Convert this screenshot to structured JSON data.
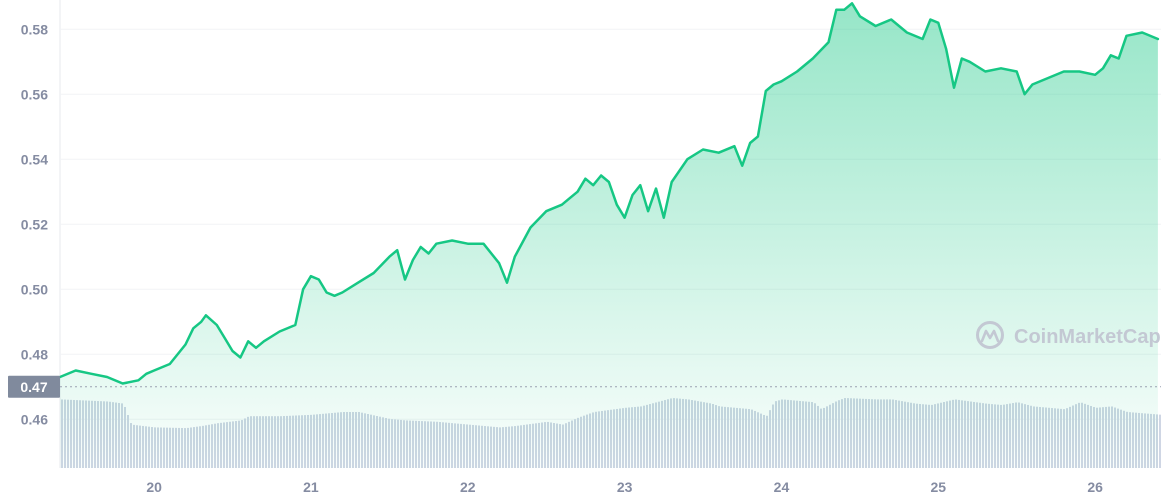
{
  "watermark": {
    "text": "CoinMarketCap",
    "icon": "coinmarketcap-logo-icon"
  },
  "colors": {
    "line": "#16c784",
    "volume": "#cfd6e4",
    "grid": "#f2f3f6",
    "reference_tag": "#808a9d",
    "axis_text": "#858ca2"
  },
  "chart_data": {
    "type": "area",
    "title": "",
    "xlabel": "",
    "ylabel": "",
    "ylim": [
      0.445,
      0.589
    ],
    "xlim": [
      19.4,
      26.42
    ],
    "y_ticks": [
      "0.46",
      "0.48",
      "0.50",
      "0.52",
      "0.54",
      "0.56",
      "0.58"
    ],
    "x_ticks": [
      "20",
      "21",
      "22",
      "23",
      "24",
      "25",
      "26"
    ],
    "reference_line": {
      "value": 0.47,
      "label": "0.47"
    },
    "grid": true,
    "legend": "none",
    "series": [
      {
        "x": [
          19.4,
          19.5,
          19.6,
          19.7,
          19.8,
          19.9,
          19.95,
          20.0,
          20.1,
          20.2,
          20.25,
          20.3,
          20.33,
          20.4,
          20.45,
          20.5,
          20.55,
          20.6,
          20.65,
          20.7,
          20.8,
          20.9,
          20.95,
          21.0,
          21.05,
          21.1,
          21.15,
          21.2,
          21.3,
          21.4,
          21.5,
          21.55,
          21.6,
          21.65,
          21.7,
          21.75,
          21.8,
          21.9,
          22.0,
          22.1,
          22.2,
          22.25,
          22.3,
          22.4,
          22.5,
          22.6,
          22.65,
          22.7,
          22.75,
          22.8,
          22.85,
          22.9,
          22.95,
          23.0,
          23.05,
          23.1,
          23.15,
          23.2,
          23.25,
          23.3,
          23.4,
          23.5,
          23.6,
          23.7,
          23.75,
          23.8,
          23.85,
          23.9,
          23.95,
          24.0,
          24.1,
          24.2,
          24.3,
          24.35,
          24.4,
          24.45,
          24.5,
          24.6,
          24.7,
          24.8,
          24.9,
          24.95,
          25.0,
          25.05,
          25.1,
          25.15,
          25.2,
          25.3,
          25.4,
          25.5,
          25.55,
          25.6,
          25.7,
          25.8,
          25.9,
          26.0,
          26.05,
          26.1,
          26.15,
          26.2,
          26.3,
          26.4
        ],
        "values": [
          0.473,
          0.475,
          0.474,
          0.473,
          0.471,
          0.472,
          0.474,
          0.475,
          0.477,
          0.483,
          0.488,
          0.49,
          0.492,
          0.489,
          0.485,
          0.481,
          0.479,
          0.484,
          0.482,
          0.484,
          0.487,
          0.489,
          0.5,
          0.504,
          0.503,
          0.499,
          0.498,
          0.499,
          0.502,
          0.505,
          0.51,
          0.512,
          0.503,
          0.509,
          0.513,
          0.511,
          0.514,
          0.515,
          0.514,
          0.514,
          0.508,
          0.502,
          0.51,
          0.519,
          0.524,
          0.526,
          0.528,
          0.53,
          0.534,
          0.532,
          0.535,
          0.533,
          0.526,
          0.522,
          0.529,
          0.532,
          0.524,
          0.531,
          0.522,
          0.533,
          0.54,
          0.543,
          0.542,
          0.544,
          0.538,
          0.545,
          0.547,
          0.561,
          0.563,
          0.564,
          0.567,
          0.571,
          0.576,
          0.586,
          0.586,
          0.588,
          0.584,
          0.581,
          0.583,
          0.579,
          0.577,
          0.583,
          0.582,
          0.574,
          0.562,
          0.571,
          0.57,
          0.567,
          0.568,
          0.567,
          0.56,
          0.563,
          0.565,
          0.567,
          0.567,
          0.566,
          0.568,
          0.572,
          0.571,
          0.578,
          0.579,
          0.577
        ]
      }
    ],
    "volume": {
      "x": [
        19.4,
        19.7,
        19.8,
        19.85,
        20.0,
        20.2,
        20.3,
        20.4,
        20.55,
        20.6,
        20.8,
        21.0,
        21.1,
        21.2,
        21.3,
        21.5,
        21.6,
        21.8,
        22.0,
        22.1,
        22.2,
        22.3,
        22.5,
        22.6,
        22.7,
        22.8,
        23.0,
        23.1,
        23.2,
        23.3,
        23.4,
        23.55,
        23.6,
        23.7,
        23.8,
        23.9,
        23.95,
        24.0,
        24.2,
        24.25,
        24.35,
        24.4,
        24.6,
        24.7,
        24.85,
        24.95,
        25.1,
        25.2,
        25.3,
        25.4,
        25.5,
        25.6,
        25.7,
        25.8,
        25.9,
        26.0,
        26.1,
        26.2,
        26.42
      ],
      "values": [
        0.98,
        0.95,
        0.92,
        0.62,
        0.58,
        0.57,
        0.6,
        0.64,
        0.68,
        0.74,
        0.74,
        0.76,
        0.78,
        0.8,
        0.8,
        0.7,
        0.68,
        0.66,
        0.62,
        0.6,
        0.58,
        0.6,
        0.66,
        0.62,
        0.72,
        0.8,
        0.86,
        0.88,
        0.94,
        1.0,
        0.98,
        0.92,
        0.88,
        0.86,
        0.84,
        0.74,
        0.95,
        0.98,
        0.94,
        0.84,
        0.96,
        1.0,
        0.98,
        0.98,
        0.92,
        0.9,
        0.98,
        0.95,
        0.92,
        0.9,
        0.94,
        0.88,
        0.86,
        0.84,
        0.94,
        0.86,
        0.88,
        0.8,
        0.76
      ]
    }
  }
}
